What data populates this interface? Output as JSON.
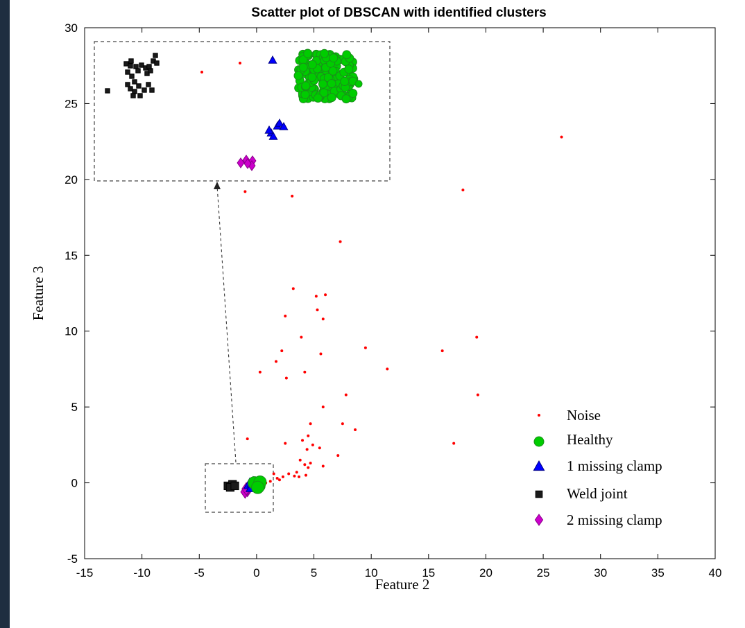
{
  "chart_data": {
    "type": "scatter",
    "title": "Scatter plot of DBSCAN with identified clusters",
    "xlabel": "Feature 2",
    "ylabel": "Feature 3",
    "xlim": [
      -15,
      40
    ],
    "ylim": [
      -5,
      30
    ],
    "xticks": [
      -15,
      -10,
      -5,
      0,
      5,
      10,
      15,
      20,
      25,
      30,
      35,
      40
    ],
    "yticks": [
      -5,
      0,
      5,
      10,
      15,
      20,
      25,
      30
    ],
    "grid": false,
    "legend_position": "bottom-right",
    "series": [
      {
        "name": "Noise",
        "marker": "dot",
        "color": "#ff0000",
        "points": [
          [
            26.6,
            22.8
          ],
          [
            18,
            19.3
          ],
          [
            -1,
            19.2
          ],
          [
            3.1,
            18.9
          ],
          [
            7.3,
            15.9
          ],
          [
            3.2,
            12.8
          ],
          [
            6,
            12.4
          ],
          [
            5.2,
            12.3
          ],
          [
            5.3,
            11.4
          ],
          [
            2.5,
            11
          ],
          [
            5.8,
            10.8
          ],
          [
            19.2,
            9.6
          ],
          [
            3.9,
            9.6
          ],
          [
            9.5,
            8.9
          ],
          [
            16.2,
            8.7
          ],
          [
            2.2,
            8.7
          ],
          [
            5.6,
            8.5
          ],
          [
            1.7,
            8
          ],
          [
            11.4,
            7.5
          ],
          [
            0.3,
            7.3
          ],
          [
            4.2,
            7.3
          ],
          [
            2.6,
            6.9
          ],
          [
            7.8,
            5.8
          ],
          [
            19.3,
            5.8
          ],
          [
            5.8,
            5
          ],
          [
            4.7,
            3.9
          ],
          [
            7.5,
            3.9
          ],
          [
            8.6,
            3.5
          ],
          [
            4.5,
            3.1
          ],
          [
            -0.8,
            2.9
          ],
          [
            4,
            2.8
          ],
          [
            17.2,
            2.6
          ],
          [
            2.5,
            2.6
          ],
          [
            4.9,
            2.5
          ],
          [
            5.5,
            2.3
          ],
          [
            4.4,
            2.2
          ],
          [
            7.1,
            1.8
          ],
          [
            3.8,
            1.5
          ],
          [
            4.7,
            1.3
          ],
          [
            4.2,
            1.2
          ],
          [
            5.8,
            1.1
          ],
          [
            4.5,
            1
          ],
          [
            3.5,
            0.7
          ],
          [
            2.8,
            0.6
          ],
          [
            4.3,
            0.5
          ],
          [
            1.5,
            0.6
          ],
          [
            2.3,
            0.4
          ],
          [
            3.3,
            0.45
          ],
          [
            3.7,
            0.4
          ],
          [
            1.8,
            0.3
          ],
          [
            2,
            0.2
          ],
          [
            1.2,
            0.1
          ],
          [
            0.8,
            0
          ]
        ]
      },
      {
        "name": "Healthy",
        "marker": "circle",
        "color": "#00cc00",
        "points": [
          [
            0,
            -0.1
          ],
          [
            0.2,
            -0.2
          ],
          [
            -0.2,
            0
          ],
          [
            0.3,
            0.05
          ],
          [
            0.1,
            -0.3
          ]
        ]
      },
      {
        "name": "1 missing clamp",
        "marker": "triangle",
        "color": "#0000ff",
        "points": [
          [
            -0.6,
            -0.1
          ],
          [
            -0.4,
            -0.3
          ],
          [
            -0.3,
            0
          ]
        ]
      },
      {
        "name": "Weld joint",
        "marker": "square",
        "color": "#1a1a1a",
        "points": [
          [
            -2.5,
            -0.2
          ],
          [
            -2.1,
            -0.1
          ],
          [
            -2.3,
            -0.3
          ],
          [
            -1.9,
            -0.2
          ]
        ]
      },
      {
        "name": "2 missing clamp",
        "marker": "diamond",
        "color": "#cc00cc",
        "points": [
          [
            -0.8,
            -0.5
          ],
          [
            -1,
            -0.6
          ],
          [
            -0.9,
            -0.4
          ]
        ]
      }
    ]
  }
}
